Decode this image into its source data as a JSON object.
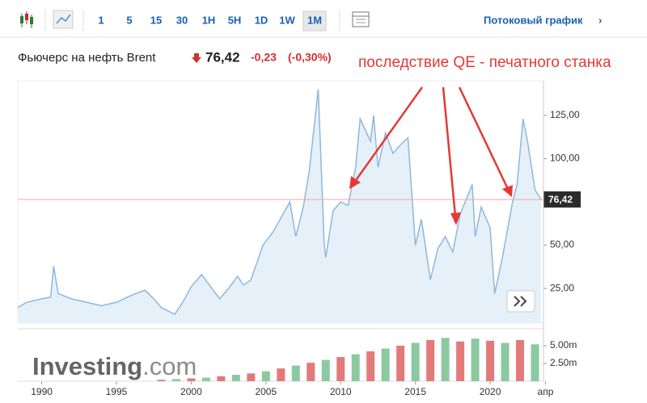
{
  "toolbar": {
    "buttons": [
      "1",
      "5",
      "15",
      "30",
      "1H",
      "5H",
      "1D",
      "1W",
      "1M"
    ],
    "active": "1M",
    "stream_link": "Потоковый график",
    "arrow": "›"
  },
  "header": {
    "name": "Фьючерс на нефть Brent",
    "price": "76,42",
    "change": "-0,23",
    "change_pct": "(-0,30%)"
  },
  "watermark": {
    "brand": "Investing",
    "domain": ".com"
  },
  "chart_data": [
    {
      "type": "area",
      "annotation": "последствие QE - печатного станка",
      "color": "#8db8dc",
      "fill": "#e6f0f8",
      "x": [
        1988.4,
        1989,
        1990,
        1990.6,
        1990.8,
        1991.1,
        1992,
        1993,
        1994,
        1995,
        1996,
        1996.9,
        1997.5,
        1998,
        1998.9,
        1999.5,
        2000,
        2000.7,
        2001.9,
        2002.5,
        2003.1,
        2003.5,
        2004,
        2004.8,
        2005.5,
        2006.6,
        2007,
        2007.5,
        2007.9,
        2008.5,
        2008.9,
        2009.0,
        2009.5,
        2010,
        2010.5,
        2011.0,
        2011.3,
        2012,
        2012.2,
        2012.5,
        2013,
        2013.5,
        2014,
        2014.5,
        2015.0,
        2015.4,
        2016.0,
        2016.5,
        2017,
        2017.5,
        2018.0,
        2018.8,
        2019.0,
        2019.4,
        2020.0,
        2020.3,
        2020.8,
        2021.5,
        2021.8,
        2022.2,
        2022.5,
        2023.0,
        2023.4
      ],
      "values": [
        14,
        17,
        19,
        20,
        38,
        22,
        19,
        17,
        15,
        17,
        21,
        24,
        19,
        14,
        10,
        18,
        26,
        33,
        19,
        25,
        32,
        27,
        30,
        50,
        58,
        75,
        55,
        72,
        93,
        140,
        50,
        43,
        70,
        75,
        73,
        95,
        123,
        110,
        125,
        95,
        115,
        103,
        108,
        112,
        50,
        65,
        30,
        48,
        55,
        46,
        68,
        85,
        55,
        72,
        60,
        22,
        42,
        75,
        85,
        123,
        110,
        82,
        76.42
      ],
      "current": {
        "value": 76.42,
        "label": "76,42"
      },
      "current_color": "#f4a6a6",
      "xlim": [
        1988.4,
        2024.0
      ],
      "ylim": [
        5,
        145
      ],
      "xticks": [
        1990,
        1995,
        2000,
        2005,
        2010,
        2015,
        2020,
        {
          "value": 2023.7,
          "label": "апр"
        }
      ],
      "yticks": [
        {
          "value": 125,
          "label": "125,00"
        },
        {
          "value": 100,
          "label": "100,00"
        },
        {
          "value": 50,
          "label": "50,00"
        },
        {
          "value": 25,
          "label": "25,00"
        }
      ]
    },
    {
      "type": "bar",
      "x": [
        1998,
        1999,
        2000,
        2001,
        2002,
        2003,
        2004,
        2005,
        2006,
        2007,
        2008,
        2009,
        2010,
        2011,
        2012,
        2013,
        2014,
        2015,
        2016,
        2017,
        2018,
        2019,
        2020,
        2021,
        2022,
        2023
      ],
      "values": [
        0.2,
        0.3,
        0.4,
        0.5,
        0.7,
        0.9,
        1.1,
        1.4,
        1.8,
        2.2,
        2.6,
        3.0,
        3.4,
        3.8,
        4.2,
        4.6,
        5.0,
        5.4,
        5.8,
        6.1,
        5.6,
        6.0,
        5.7,
        5.4,
        5.8,
        5.2
      ],
      "colors": [
        "#e37a7a",
        "#8cc9a0",
        "#e37a7a",
        "#8cc9a0",
        "#e37a7a",
        "#8cc9a0",
        "#e37a7a",
        "#8cc9a0",
        "#e37a7a",
        "#8cc9a0",
        "#e37a7a",
        "#8cc9a0",
        "#e37a7a",
        "#8cc9a0",
        "#e37a7a",
        "#8cc9a0",
        "#e37a7a",
        "#8cc9a0",
        "#e37a7a",
        "#8cc9a0",
        "#e37a7a",
        "#8cc9a0",
        "#e37a7a",
        "#8cc9a0",
        "#e37a7a",
        "#8cc9a0"
      ],
      "xlim": [
        1988.4,
        2024.0
      ],
      "ylim": [
        0,
        6.6
      ],
      "yticks": [
        {
          "value": 5,
          "label": "5.00m"
        },
        {
          "value": 2.5,
          "label": "2.50m"
        }
      ]
    }
  ]
}
